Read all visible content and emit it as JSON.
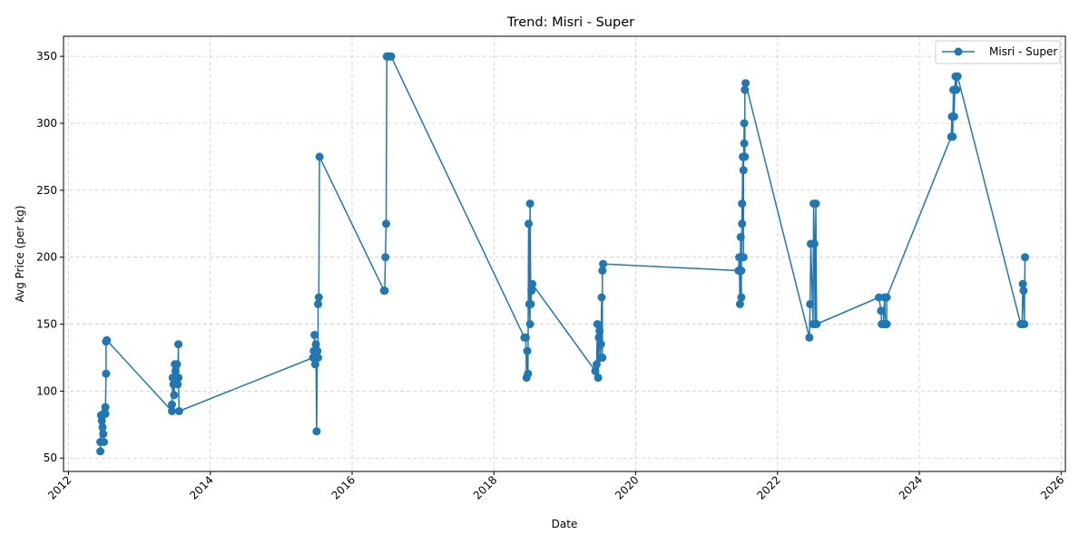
{
  "chart_data": {
    "type": "line",
    "title": "Trend: Misri - Super",
    "xlabel": "Date",
    "ylabel": "Avg Price (per kg)",
    "xlim": [
      2011.93,
      2026.06
    ],
    "ylim": [
      40,
      365
    ],
    "x_ticks": [
      2012,
      2014,
      2016,
      2018,
      2020,
      2022,
      2024,
      2026
    ],
    "y_ticks": [
      50,
      100,
      150,
      200,
      250,
      300,
      350
    ],
    "grid": true,
    "legend_position": "top-right",
    "series": [
      {
        "name": "Misri - Super",
        "color": "#1f77b4",
        "marker": "circle",
        "points": [
          [
            2012.45,
            55
          ],
          [
            2012.45,
            62
          ],
          [
            2012.46,
            82
          ],
          [
            2012.47,
            78
          ],
          [
            2012.48,
            73
          ],
          [
            2012.49,
            68
          ],
          [
            2012.5,
            62
          ],
          [
            2012.51,
            84
          ],
          [
            2012.52,
            88
          ],
          [
            2012.52,
            83
          ],
          [
            2012.53,
            113
          ],
          [
            2012.53,
            137
          ],
          [
            2012.54,
            138
          ],
          [
            2013.46,
            85
          ],
          [
            2013.46,
            90
          ],
          [
            2013.47,
            110
          ],
          [
            2013.48,
            105
          ],
          [
            2013.49,
            97
          ],
          [
            2013.5,
            120
          ],
          [
            2013.51,
            115
          ],
          [
            2013.52,
            108
          ],
          [
            2013.53,
            120
          ],
          [
            2013.54,
            105
          ],
          [
            2013.55,
            135
          ],
          [
            2013.55,
            110
          ],
          [
            2013.56,
            85
          ],
          [
            2015.45,
            125
          ],
          [
            2015.46,
            130
          ],
          [
            2015.47,
            142
          ],
          [
            2015.48,
            120
          ],
          [
            2015.49,
            135
          ],
          [
            2015.5,
            70
          ],
          [
            2015.51,
            130
          ],
          [
            2015.52,
            125
          ],
          [
            2015.52,
            165
          ],
          [
            2015.53,
            170
          ],
          [
            2015.54,
            275
          ],
          [
            2016.45,
            175
          ],
          [
            2016.46,
            175
          ],
          [
            2016.47,
            200
          ],
          [
            2016.48,
            225
          ],
          [
            2016.49,
            350
          ],
          [
            2016.5,
            350
          ],
          [
            2016.51,
            350
          ],
          [
            2016.53,
            350
          ],
          [
            2016.54,
            350
          ],
          [
            2016.55,
            350
          ],
          [
            2018.43,
            140
          ],
          [
            2018.45,
            140
          ],
          [
            2018.46,
            110
          ],
          [
            2018.47,
            130
          ],
          [
            2018.48,
            113
          ],
          [
            2018.49,
            225
          ],
          [
            2018.5,
            165
          ],
          [
            2018.51,
            150
          ],
          [
            2018.51,
            240
          ],
          [
            2018.52,
            165
          ],
          [
            2018.53,
            175
          ],
          [
            2018.54,
            180
          ],
          [
            2019.43,
            115
          ],
          [
            2019.45,
            120
          ],
          [
            2019.46,
            150
          ],
          [
            2019.47,
            110
          ],
          [
            2019.48,
            140
          ],
          [
            2019.49,
            145
          ],
          [
            2019.5,
            125
          ],
          [
            2019.51,
            135
          ],
          [
            2019.52,
            170
          ],
          [
            2019.53,
            125
          ],
          [
            2019.53,
            190
          ],
          [
            2019.54,
            195
          ],
          [
            2021.45,
            190
          ],
          [
            2021.46,
            200
          ],
          [
            2021.47,
            165
          ],
          [
            2021.48,
            215
          ],
          [
            2021.49,
            170
          ],
          [
            2021.49,
            190
          ],
          [
            2021.5,
            240
          ],
          [
            2021.5,
            225
          ],
          [
            2021.51,
            275
          ],
          [
            2021.52,
            200
          ],
          [
            2021.52,
            265
          ],
          [
            2021.53,
            300
          ],
          [
            2021.53,
            285
          ],
          [
            2021.54,
            275
          ],
          [
            2021.54,
            325
          ],
          [
            2021.55,
            330
          ],
          [
            2022.45,
            140
          ],
          [
            2022.46,
            165
          ],
          [
            2022.47,
            210
          ],
          [
            2022.5,
            150
          ],
          [
            2022.51,
            240
          ],
          [
            2022.52,
            210
          ],
          [
            2022.53,
            150
          ],
          [
            2022.54,
            240
          ],
          [
            2022.55,
            150
          ],
          [
            2023.43,
            170
          ],
          [
            2023.46,
            160
          ],
          [
            2023.47,
            150
          ],
          [
            2023.49,
            150
          ],
          [
            2023.51,
            170
          ],
          [
            2023.52,
            150
          ],
          [
            2023.53,
            150
          ],
          [
            2023.54,
            150
          ],
          [
            2023.54,
            170
          ],
          [
            2024.45,
            290
          ],
          [
            2024.46,
            305
          ],
          [
            2024.47,
            290
          ],
          [
            2024.48,
            325
          ],
          [
            2024.49,
            305
          ],
          [
            2024.5,
            325
          ],
          [
            2024.51,
            335
          ],
          [
            2024.52,
            325
          ],
          [
            2024.53,
            335
          ],
          [
            2024.54,
            335
          ],
          [
            2025.43,
            150
          ],
          [
            2025.45,
            150
          ],
          [
            2025.46,
            180
          ],
          [
            2025.47,
            175
          ],
          [
            2025.48,
            150
          ],
          [
            2025.49,
            200
          ]
        ]
      }
    ]
  }
}
